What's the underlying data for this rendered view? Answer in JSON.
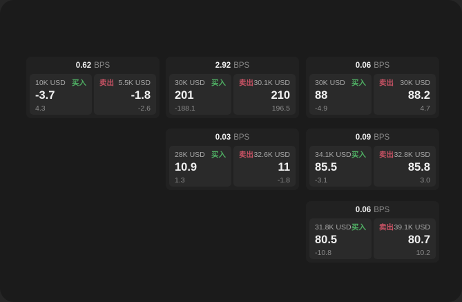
{
  "labels": {
    "bps_unit": "BPS",
    "buy": "买入",
    "sell": "卖出"
  },
  "colors": {
    "window_bg": "#1b1b1b",
    "card_bg": "#212121",
    "panel_bg": "#2a2a2a",
    "text_primary": "#f0f0f0",
    "text_secondary": "#a8a8a8",
    "text_muted": "#8a8a8a",
    "buy_green": "#4fae63",
    "sell_red": "#c75264"
  },
  "cards": [
    {
      "bps": "0.62",
      "buy": {
        "notional": "10K USD",
        "price": "-3.7",
        "delta": "4.3"
      },
      "sell": {
        "notional": "5.5K USD",
        "price": "-1.8",
        "delta": "-2.6"
      }
    },
    {
      "bps": "2.92",
      "buy": {
        "notional": "30K USD",
        "price": "201",
        "delta": "-188.1"
      },
      "sell": {
        "notional": "30.1K USD",
        "price": "210",
        "delta": "196.5"
      }
    },
    {
      "bps": "0.06",
      "buy": {
        "notional": "30K USD",
        "price": "88",
        "delta": "-4.9"
      },
      "sell": {
        "notional": "30K USD",
        "price": "88.2",
        "delta": "4.7"
      }
    },
    {
      "bps": "0.03",
      "buy": {
        "notional": "28K USD",
        "price": "10.9",
        "delta": "1.3"
      },
      "sell": {
        "notional": "32.6K USD",
        "price": "11",
        "delta": "-1.8"
      }
    },
    {
      "bps": "0.09",
      "buy": {
        "notional": "34.1K USD",
        "price": "85.5",
        "delta": "-3.1"
      },
      "sell": {
        "notional": "32.8K USD",
        "price": "85.8",
        "delta": "3.0"
      }
    },
    {
      "bps": "0.06",
      "buy": {
        "notional": "31.8K USD",
        "price": "80.5",
        "delta": "-10.8"
      },
      "sell": {
        "notional": "39.1K USD",
        "price": "80.7",
        "delta": "10.2"
      }
    }
  ]
}
